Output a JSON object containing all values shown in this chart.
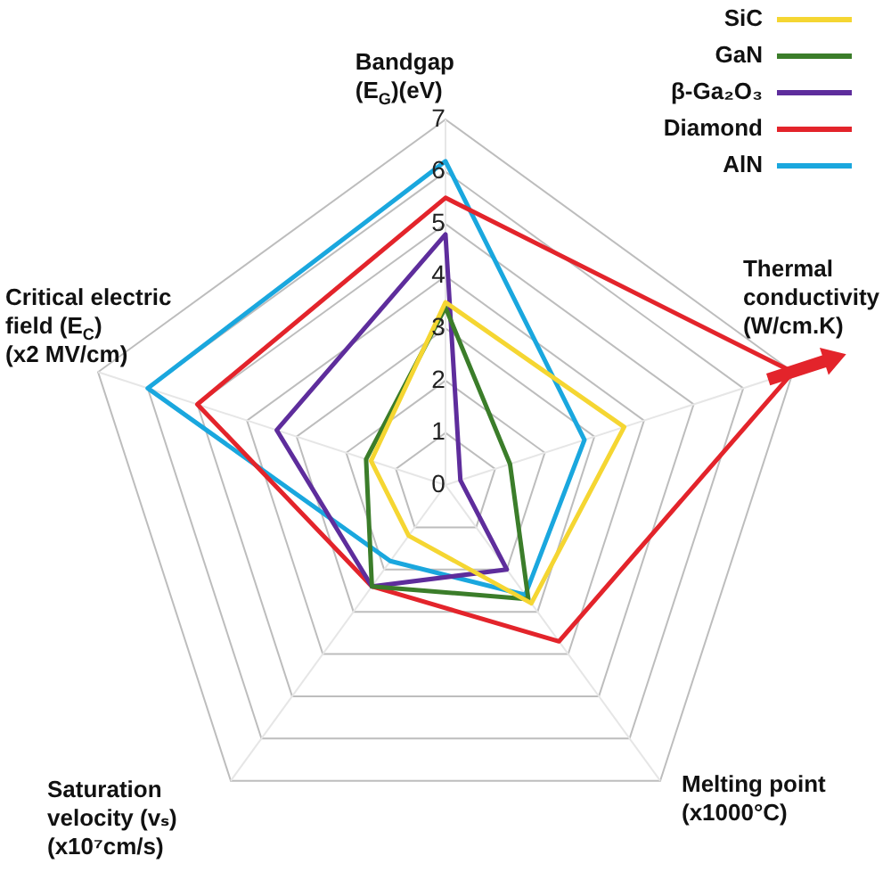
{
  "chart_data": {
    "type": "radar",
    "categories": [
      "Bandgap\n(E$_{G}$)(eV)",
      "Thermal\nconductivity\n(W/cm.K)",
      "Melting point\n(x1000°C)",
      "Saturation\nvelocity (vₛ)\n(x10⁷cm/s)",
      "Critical electric\nfield (E$_{C}$)\n(x2 MV/cm)"
    ],
    "series": [
      {
        "name": "SiC",
        "color": "#f5d632",
        "values": [
          3.5,
          3.6,
          2.8,
          1.2,
          1.5
        ]
      },
      {
        "name": "GaN",
        "color": "#3b7d2a",
        "values": [
          3.4,
          1.3,
          2.7,
          2.4,
          1.6
        ]
      },
      {
        "name": "β-Ga₂O₃",
        "color": "#5e2d9c",
        "values": [
          4.8,
          0.3,
          2.0,
          2.4,
          3.4
        ]
      },
      {
        "name": "Diamond",
        "color": "#e3242b",
        "values": [
          5.5,
          7,
          3.7,
          2.4,
          5.0
        ]
      },
      {
        "name": "AlN",
        "color": "#1aa7de",
        "values": [
          6.2,
          2.8,
          2.6,
          1.8,
          6.0
        ]
      }
    ],
    "ylim": [
      0,
      7
    ],
    "yticks": [
      0,
      1,
      2,
      3,
      4,
      5,
      6,
      7
    ],
    "grid": true,
    "legend": "top right"
  }
}
